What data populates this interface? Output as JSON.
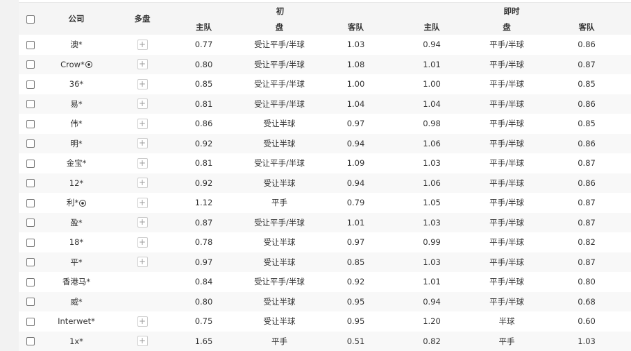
{
  "header": {
    "company": "公司",
    "multi": "多盘",
    "initial": "初",
    "live": "即时",
    "home": "主队",
    "line": "盘",
    "away": "客队"
  },
  "rows": [
    {
      "company": "澳*",
      "ball": false,
      "plus": true,
      "i_home": "0.77",
      "i_line": "受让平手/半球",
      "i_away": "1.03",
      "l_home": "0.94",
      "l_line": "平手/半球",
      "l_away": "0.86"
    },
    {
      "company": "Crow*",
      "ball": true,
      "plus": true,
      "i_home": "0.80",
      "i_line": "受让平手/半球",
      "i_away": "1.08",
      "l_home": "1.01",
      "l_line": "平手/半球",
      "l_away": "0.87"
    },
    {
      "company": "36*",
      "ball": false,
      "plus": true,
      "i_home": "0.85",
      "i_line": "受让平手/半球",
      "i_away": "1.00",
      "l_home": "1.00",
      "l_line": "平手/半球",
      "l_away": "0.85"
    },
    {
      "company": "易*",
      "ball": false,
      "plus": true,
      "i_home": "0.81",
      "i_line": "受让平手/半球",
      "i_away": "1.04",
      "l_home": "1.04",
      "l_line": "平手/半球",
      "l_away": "0.86"
    },
    {
      "company": "伟*",
      "ball": false,
      "plus": true,
      "i_home": "0.86",
      "i_line": "受让半球",
      "i_away": "0.97",
      "l_home": "0.98",
      "l_line": "平手/半球",
      "l_away": "0.85"
    },
    {
      "company": "明*",
      "ball": false,
      "plus": true,
      "i_home": "0.92",
      "i_line": "受让半球",
      "i_away": "0.94",
      "l_home": "1.06",
      "l_line": "平手/半球",
      "l_away": "0.86"
    },
    {
      "company": "金宝*",
      "ball": false,
      "plus": true,
      "i_home": "0.81",
      "i_line": "受让平手/半球",
      "i_away": "1.09",
      "l_home": "1.03",
      "l_line": "平手/半球",
      "l_away": "0.87"
    },
    {
      "company": "12*",
      "ball": false,
      "plus": true,
      "i_home": "0.92",
      "i_line": "受让半球",
      "i_away": "0.94",
      "l_home": "1.06",
      "l_line": "平手/半球",
      "l_away": "0.86"
    },
    {
      "company": "利*",
      "ball": true,
      "plus": true,
      "i_home": "1.12",
      "i_line": "平手",
      "i_away": "0.79",
      "l_home": "1.05",
      "l_line": "平手/半球",
      "l_away": "0.87"
    },
    {
      "company": "盈*",
      "ball": false,
      "plus": true,
      "i_home": "0.87",
      "i_line": "受让平手/半球",
      "i_away": "1.01",
      "l_home": "1.03",
      "l_line": "平手/半球",
      "l_away": "0.87"
    },
    {
      "company": "18*",
      "ball": false,
      "plus": true,
      "i_home": "0.78",
      "i_line": "受让半球",
      "i_away": "0.97",
      "l_home": "0.99",
      "l_line": "平手/半球",
      "l_away": "0.82"
    },
    {
      "company": "平*",
      "ball": false,
      "plus": true,
      "i_home": "0.97",
      "i_line": "受让半球",
      "i_away": "0.85",
      "l_home": "1.03",
      "l_line": "平手/半球",
      "l_away": "0.87"
    },
    {
      "company": "香港马*",
      "ball": false,
      "plus": false,
      "i_home": "0.84",
      "i_line": "受让平手/半球",
      "i_away": "0.92",
      "l_home": "1.01",
      "l_line": "平手/半球",
      "l_away": "0.80"
    },
    {
      "company": "威*",
      "ball": false,
      "plus": false,
      "i_home": "0.80",
      "i_line": "受让半球",
      "i_away": "0.95",
      "l_home": "0.94",
      "l_line": "平手/半球",
      "l_away": "0.68"
    },
    {
      "company": "Interwet*",
      "ball": false,
      "plus": true,
      "i_home": "0.75",
      "i_line": "受让半球",
      "i_away": "0.95",
      "l_home": "1.20",
      "l_line": "半球",
      "l_away": "0.60"
    },
    {
      "company": "1x*",
      "ball": false,
      "plus": true,
      "i_home": "1.65",
      "i_line": "平手",
      "i_away": "0.51",
      "l_home": "0.82",
      "l_line": "平手",
      "l_away": "1.03"
    }
  ]
}
